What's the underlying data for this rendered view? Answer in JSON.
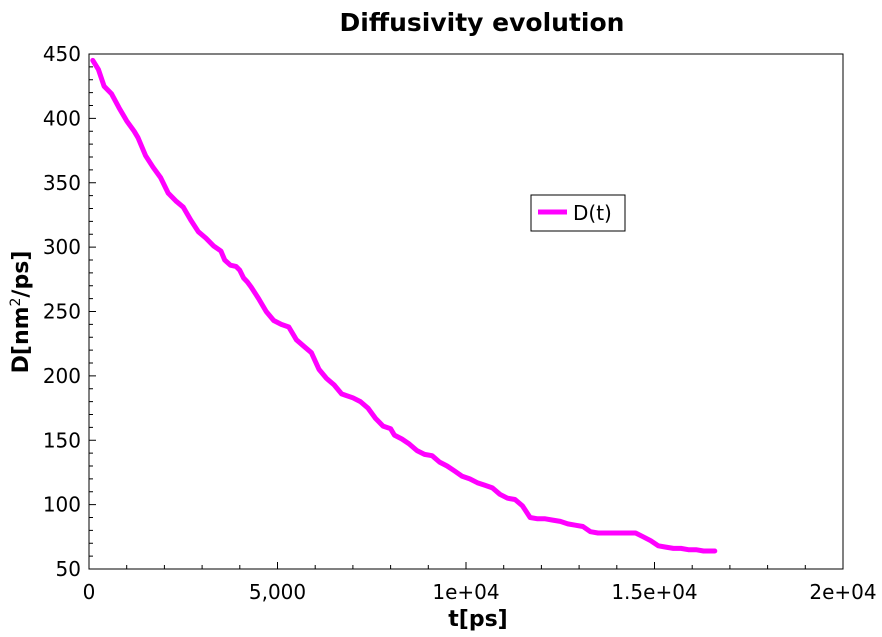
{
  "chart_data": {
    "type": "line",
    "title": "Diffusivity evolution",
    "xlabel": "t[ps]",
    "ylabel_main": "D[nm",
    "ylabel_sup": "2",
    "ylabel_tail": "/ps]",
    "xlim": [
      0,
      20000
    ],
    "ylim": [
      50,
      450
    ],
    "xticks": [
      0,
      5000,
      10000,
      15000,
      20000
    ],
    "xtick_labels": [
      "0",
      "5,000",
      "1e+04",
      "1.5e+04",
      "2e+04"
    ],
    "yticks": [
      50,
      100,
      150,
      200,
      250,
      300,
      350,
      400,
      450
    ],
    "ytick_labels": [
      "50",
      "100",
      "150",
      "200",
      "250",
      "300",
      "350",
      "400",
      "450"
    ],
    "grid": false,
    "legend_position": "center-right",
    "series": [
      {
        "name": "D(t)",
        "color": "#ff00ff",
        "x": [
          100,
          250,
          400,
          600,
          800,
          1000,
          1200,
          1300,
          1500,
          1700,
          1900,
          2100,
          2300,
          2500,
          2700,
          2900,
          3100,
          3300,
          3500,
          3600,
          3750,
          3900,
          4000,
          4100,
          4200,
          4300,
          4500,
          4700,
          4900,
          5100,
          5300,
          5500,
          5700,
          5900,
          6100,
          6300,
          6500,
          6700,
          6800,
          7000,
          7200,
          7400,
          7600,
          7800,
          8000,
          8100,
          8300,
          8500,
          8700,
          8900,
          9100,
          9300,
          9500,
          9700,
          9900,
          10100,
          10300,
          10500,
          10700,
          10900,
          11100,
          11300,
          11500,
          11700,
          11900,
          12100,
          12300,
          12500,
          12700,
          12900,
          13100,
          13300,
          13500,
          13700,
          13900,
          14100,
          14300,
          14500,
          14700,
          14900,
          15100,
          15300,
          15500,
          15700,
          15900,
          16100,
          16300,
          16500,
          16600
        ],
        "y": [
          445,
          438,
          425,
          419,
          408,
          398,
          390,
          385,
          371,
          362,
          354,
          342,
          336,
          331,
          321,
          312,
          307,
          301,
          297,
          290,
          286,
          285,
          282,
          276,
          273,
          269,
          260,
          250,
          243,
          240,
          238,
          228,
          223,
          218,
          205,
          198,
          193,
          186,
          185,
          183,
          180,
          175,
          167,
          161,
          159,
          154,
          151,
          147,
          142,
          139,
          138,
          133,
          130,
          126,
          122,
          120,
          117,
          115,
          113,
          108,
          105,
          104,
          99,
          90,
          89,
          89,
          88,
          87,
          85,
          84,
          83,
          79,
          78,
          78,
          78,
          78,
          78,
          78,
          75,
          72,
          68,
          67,
          66,
          66,
          65,
          65,
          64,
          64,
          64
        ]
      }
    ]
  }
}
